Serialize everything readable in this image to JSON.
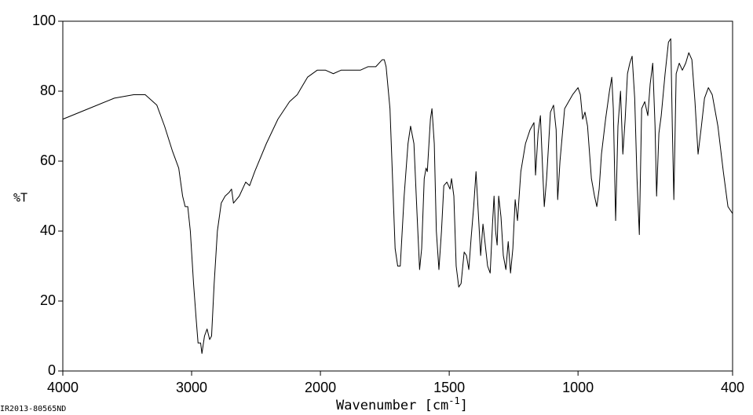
{
  "chart_data": {
    "type": "line",
    "y_label": "%T",
    "x_label": "Wavenumber [cm",
    "x_label_sup": "-1",
    "x_label_end": "]",
    "annotation": "IR2013-80565ND",
    "xlim": [
      4000,
      400
    ],
    "xticks": [
      4000,
      3000,
      2000,
      1500,
      1000,
      400
    ],
    "x_break": 2000,
    "x_break_factor": 2,
    "ylim": [
      0,
      100
    ],
    "yticks": [
      0,
      20,
      40,
      60,
      80,
      100
    ],
    "color": "#000000",
    "x": [
      4000,
      3800,
      3600,
      3450,
      3360,
      3270,
      3210,
      3150,
      3100,
      3070,
      3050,
      3030,
      3010,
      2985,
      2965,
      2950,
      2930,
      2920,
      2900,
      2880,
      2860,
      2845,
      2825,
      2800,
      2770,
      2740,
      2710,
      2690,
      2675,
      2630,
      2580,
      2550,
      2510,
      2420,
      2330,
      2240,
      2180,
      2100,
      2025,
      1980,
      1950,
      1920,
      1875,
      1845,
      1815,
      1785,
      1760,
      1752,
      1745,
      1730,
      1720,
      1710,
      1700,
      1690,
      1675,
      1660,
      1650,
      1637,
      1625,
      1615,
      1607,
      1597,
      1590,
      1585,
      1573,
      1567,
      1558,
      1550,
      1540,
      1530,
      1521,
      1509,
      1497,
      1491,
      1482,
      1473,
      1463,
      1454,
      1442,
      1433,
      1424,
      1415,
      1405,
      1396,
      1387,
      1378,
      1369,
      1360,
      1351,
      1341,
      1332,
      1326,
      1320,
      1314,
      1308,
      1299,
      1290,
      1280,
      1271,
      1262,
      1253,
      1244,
      1235,
      1222,
      1204,
      1186,
      1171,
      1165,
      1155,
      1146,
      1137,
      1131,
      1122,
      1107,
      1095,
      1085,
      1079,
      1070,
      1052,
      1021,
      1000,
      991,
      982,
      973,
      963,
      948,
      936,
      927,
      918,
      909,
      893,
      878,
      869,
      863,
      854,
      845,
      835,
      826,
      817,
      808,
      799,
      790,
      780,
      771,
      762,
      753,
      741,
      729,
      720,
      710,
      701,
      695,
      686,
      677,
      662,
      649,
      640,
      634,
      628,
      619,
      607,
      595,
      582,
      570,
      558,
      546,
      534,
      521,
      509,
      494,
      479,
      457,
      436,
      418,
      400
    ],
    "y": [
      72,
      75,
      78,
      79,
      79,
      76,
      70,
      63,
      58,
      50,
      47,
      47,
      40,
      25,
      15,
      8,
      8,
      5,
      10,
      12,
      9,
      10,
      25,
      40,
      48,
      50,
      51,
      52,
      48,
      50,
      54,
      53,
      57,
      65,
      72,
      77,
      79,
      84,
      86,
      86,
      85,
      86,
      86,
      86,
      87,
      87,
      89,
      89,
      87,
      75,
      55,
      35,
      30,
      30,
      50,
      65,
      70,
      65,
      45,
      29,
      35,
      55,
      58,
      57,
      72,
      75,
      65,
      40,
      29,
      40,
      53,
      54,
      52,
      55,
      50,
      30,
      24,
      25,
      34,
      33,
      29,
      38,
      47,
      57,
      45,
      33,
      42,
      36,
      30,
      28,
      42,
      50,
      40,
      36,
      50,
      44,
      33,
      29,
      37,
      28,
      35,
      49,
      43,
      57,
      65,
      69,
      71,
      56,
      68,
      73,
      57,
      47,
      55,
      74,
      76,
      69,
      49,
      60,
      75,
      79,
      81,
      79,
      72,
      74,
      70,
      55,
      50,
      47,
      52,
      62,
      72,
      80,
      84,
      75,
      43,
      70,
      80,
      62,
      72,
      85,
      88,
      90,
      78,
      55,
      39,
      75,
      77,
      73,
      82,
      88,
      70,
      50,
      68,
      73,
      85,
      94,
      95,
      70,
      49,
      85,
      88,
      86,
      88,
      91,
      89,
      77,
      62,
      70,
      78,
      81,
      79,
      70,
      57,
      47,
      45
    ]
  }
}
